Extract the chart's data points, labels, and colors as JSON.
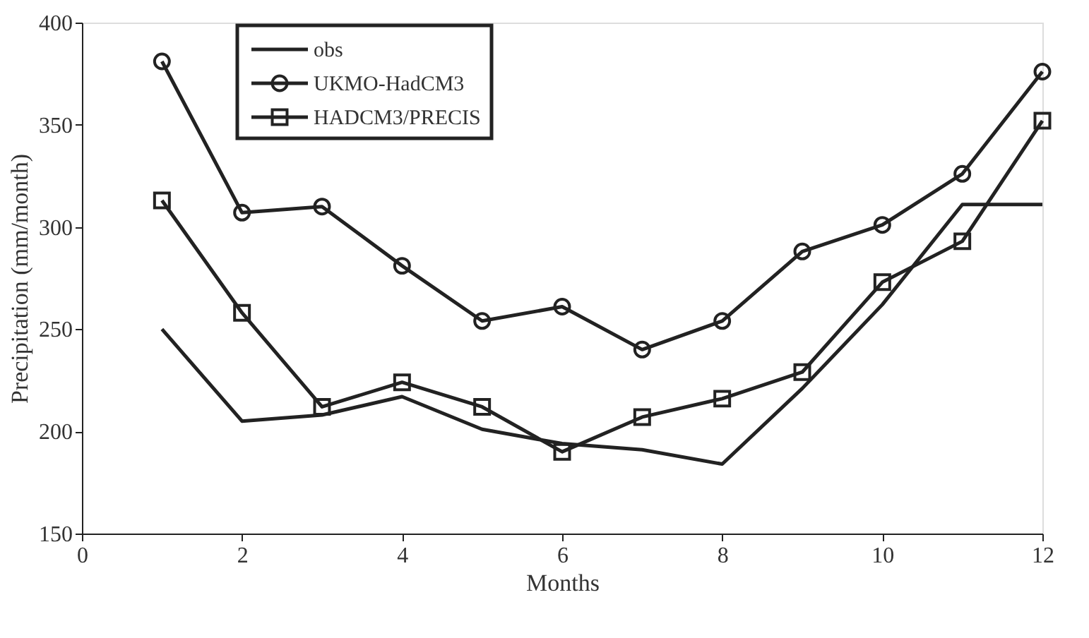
{
  "chart_data": {
    "type": "line",
    "xlabel": "Months",
    "ylabel": "Precipitation (mm/month)",
    "x": [
      1,
      2,
      3,
      4,
      5,
      6,
      7,
      8,
      9,
      10,
      11,
      12
    ],
    "xlim": [
      0,
      12
    ],
    "xticks": [
      0,
      2,
      4,
      6,
      8,
      10,
      12
    ],
    "ylim": [
      150,
      400
    ],
    "yticks": [
      150,
      200,
      250,
      300,
      350,
      400
    ],
    "grid": false,
    "legend": "top left",
    "series": [
      {
        "name": "obs",
        "color": "#222222",
        "marker": "none",
        "values": [
          250,
          205,
          208,
          217,
          201,
          194,
          191,
          184,
          221,
          262,
          311,
          311
        ]
      },
      {
        "name": "UKMO-HadCM3",
        "color": "#222222",
        "marker": "circle",
        "values": [
          381,
          307,
          310,
          281,
          254,
          261,
          240,
          254,
          288,
          301,
          326,
          376
        ]
      },
      {
        "name": "HADCM3/PRECIS",
        "color": "#222222",
        "marker": "square",
        "values": [
          313,
          258,
          212,
          224,
          212,
          190,
          207,
          216,
          229,
          273,
          293,
          352
        ]
      }
    ]
  }
}
